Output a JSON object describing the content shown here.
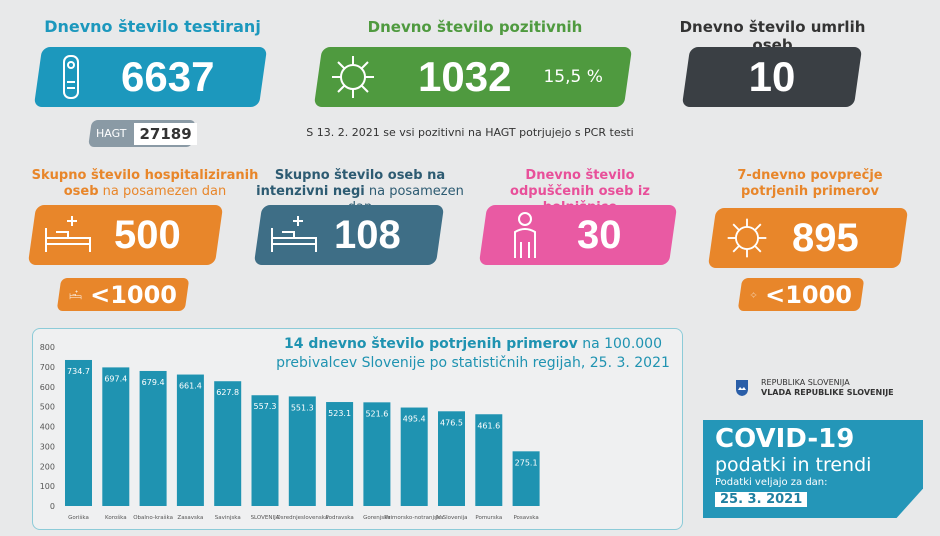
{
  "colors": {
    "teal": "#1c98bd",
    "green": "#4f9a3f",
    "dark": "#3a3f44",
    "orange": "#e8862a",
    "slate": "#3e6e86",
    "pink": "#e95aa3",
    "bar": "#1f93b1"
  },
  "tested": {
    "title": "Dnevno število testiranj",
    "value": "6637",
    "icon": "rapid-test-icon",
    "hagt_label": "HAGT",
    "hagt_value": "27189"
  },
  "positive": {
    "title": "Dnevno število pozitivnih",
    "value": "1032",
    "percent": "15,5 %",
    "icon": "virus-icon",
    "note": "S 13. 2. 2021 se vsi pozitivni na HAGT potrjujejo s PCR testi"
  },
  "deaths": {
    "title": "Dnevno število umrlih oseb",
    "value": "10"
  },
  "hospitalized": {
    "title_bold": "Skupno število hospitaliziranih oseb",
    "title_rest": " na posamezen dan",
    "value": "500",
    "icon": "hospital-bed-icon",
    "threshold": "<1000"
  },
  "icu": {
    "title_bold": "Skupno število oseb na intenzivni negi",
    "title_rest": " na posamezen dan",
    "value": "108",
    "icon": "hospital-bed-icon"
  },
  "discharged": {
    "title": "Dnevno število odpuščenih oseb iz bolnišnice",
    "value": "30",
    "icon": "patient-icon"
  },
  "avg7": {
    "title": "7-dnevno povprečje potrjenih primerov",
    "value": "895",
    "icon": "virus-icon",
    "threshold": "<1000"
  },
  "gov": {
    "line1": "REPUBLIKA SLOVENIJA",
    "line2": "VLADA REPUBLIKE SLOVENIJE"
  },
  "covid": {
    "title": "COVID-19",
    "subtitle": "podatki in trendi",
    "valid_label": "Podatki veljajo za dan:",
    "date": "25. 3. 2021"
  },
  "chart_data": {
    "type": "bar",
    "title_bold": "14 dnevno število potrjenih primerov",
    "title_rest": " na 100.000 prebivalcev Slovenije po statističnih regijah, 25. 3. 2021",
    "categories": [
      "Goriška",
      "Koroška",
      "Obalno-kraška",
      "Zasavska",
      "Savinjska",
      "SLOVENIJA",
      "Osrednjeslovenska",
      "Podravska",
      "Gorenjska",
      "Primorsko-notranjska",
      "JV Slovenija",
      "Pomurska",
      "Posavska"
    ],
    "values": [
      734.7,
      697.4,
      679.4,
      661.4,
      627.8,
      557.3,
      551.3,
      523.1,
      521.6,
      495.4,
      476.5,
      461.6,
      275.1
    ],
    "labels": [
      "734.7",
      "697.4",
      "679.4",
      "661.4",
      "627.8",
      "557.3",
      "551.3",
      "523.1",
      "521.6",
      "495.4",
      "476.5",
      "461.6",
      "275.1"
    ],
    "yticks": [
      "0",
      "100",
      "200",
      "300",
      "400",
      "500",
      "600",
      "700",
      "800"
    ],
    "ylim": [
      0,
      800
    ],
    "grid": false
  }
}
